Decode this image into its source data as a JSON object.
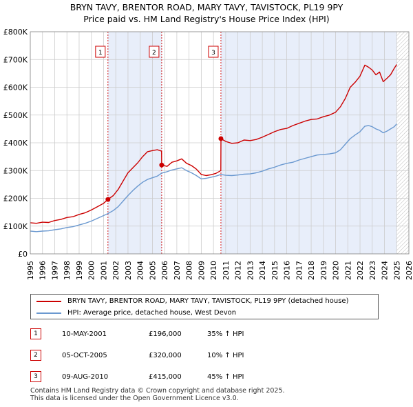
{
  "chart_data": {
    "type": "line",
    "title": "BRYN TAVY, BRENTOR ROAD, MARY TAVY, TAVISTOCK, PL19 9PY",
    "subtitle": "Price paid vs. HM Land Registry's House Price Index (HPI)",
    "x_ticks": [
      "1995",
      "1996",
      "1997",
      "1998",
      "1999",
      "2000",
      "2001",
      "2002",
      "2003",
      "2004",
      "2005",
      "2006",
      "2007",
      "2008",
      "2009",
      "2010",
      "2011",
      "2012",
      "2013",
      "2014",
      "2015",
      "2016",
      "2017",
      "2018",
      "2019",
      "2020",
      "2021",
      "2022",
      "2023",
      "2024",
      "2025",
      "2026"
    ],
    "y_ticks": [
      {
        "value": 0,
        "label": "£0"
      },
      {
        "value": 100000,
        "label": "£100K"
      },
      {
        "value": 200000,
        "label": "£200K"
      },
      {
        "value": 300000,
        "label": "£300K"
      },
      {
        "value": 400000,
        "label": "£400K"
      },
      {
        "value": 500000,
        "label": "£500K"
      },
      {
        "value": 600000,
        "label": "£600K"
      },
      {
        "value": 700000,
        "label": "£700K"
      },
      {
        "value": 800000,
        "label": "£800K"
      }
    ],
    "xlim": [
      1995,
      2026
    ],
    "ylim": [
      0,
      800000
    ],
    "grid": true,
    "series": [
      {
        "name": "BRYN TAVY, BRENTOR ROAD, MARY TAVY, TAVISTOCK, PL19 9PY (detached house)",
        "color": "#cc0000",
        "x": [
          1995,
          1995.5,
          1996,
          1996.5,
          1997,
          1997.5,
          1998,
          1998.5,
          1999,
          1999.5,
          2000,
          2000.5,
          2001.0,
          2001.36,
          2001.8,
          2002.2,
          2002.6,
          2003.0,
          2003.4,
          2003.8,
          2004.2,
          2004.6,
          2005.0,
          2005.4,
          2005.75,
          2005.76,
          2006.2,
          2006.6,
          2007.0,
          2007.4,
          2007.8,
          2008.2,
          2008.6,
          2009.0,
          2009.4,
          2009.8,
          2010.2,
          2010.6,
          2010.61,
          2011.0,
          2011.5,
          2012.0,
          2012.5,
          2013.0,
          2013.5,
          2014.0,
          2014.5,
          2015.0,
          2015.5,
          2016.0,
          2016.5,
          2017.0,
          2017.5,
          2018.0,
          2018.5,
          2019.0,
          2019.5,
          2020.0,
          2020.4,
          2020.8,
          2021.2,
          2021.6,
          2022.0,
          2022.4,
          2022.7,
          2023.0,
          2023.3,
          2023.6,
          2023.9,
          2024.2,
          2024.5,
          2024.8,
          2025.0
        ],
        "values": [
          112000,
          110000,
          114000,
          113000,
          120000,
          124000,
          131000,
          134000,
          142000,
          148000,
          158000,
          170000,
          182000,
          196000,
          210000,
          232000,
          262000,
          292000,
          310000,
          328000,
          350000,
          368000,
          372000,
          375000,
          370000,
          320000,
          315000,
          330000,
          335000,
          342000,
          326000,
          318000,
          305000,
          286000,
          282000,
          285000,
          290000,
          300000,
          415000,
          405000,
          398000,
          400000,
          410000,
          408000,
          412000,
          420000,
          430000,
          440000,
          448000,
          452000,
          462000,
          470000,
          478000,
          484000,
          486000,
          494000,
          500000,
          510000,
          530000,
          560000,
          600000,
          618000,
          640000,
          680000,
          672000,
          662000,
          645000,
          655000,
          620000,
          632000,
          645000,
          668000,
          682000
        ]
      },
      {
        "name": "HPI: Average price, detached house, West Devon",
        "color": "#6b99d0",
        "x": [
          1995,
          1995.5,
          1996,
          1996.5,
          1997,
          1997.5,
          1998,
          1998.5,
          1999,
          1999.5,
          2000,
          2000.5,
          2001.0,
          2001.36,
          2001.8,
          2002.2,
          2002.6,
          2003.0,
          2003.4,
          2003.8,
          2004.2,
          2004.6,
          2005.0,
          2005.4,
          2005.76,
          2006.2,
          2006.6,
          2007.0,
          2007.4,
          2007.8,
          2008.2,
          2008.6,
          2009.0,
          2009.4,
          2009.8,
          2010.2,
          2010.61,
          2011.0,
          2011.5,
          2012.0,
          2012.5,
          2013.0,
          2013.5,
          2014.0,
          2014.5,
          2015.0,
          2015.5,
          2016.0,
          2016.5,
          2017.0,
          2017.5,
          2018.0,
          2018.5,
          2019.0,
          2019.5,
          2020.0,
          2020.4,
          2020.8,
          2021.2,
          2021.6,
          2022.0,
          2022.4,
          2022.7,
          2023.0,
          2023.3,
          2023.6,
          2023.9,
          2024.2,
          2024.5,
          2024.8,
          2025.0
        ],
        "values": [
          82000,
          80000,
          82000,
          83000,
          87000,
          90000,
          95000,
          98000,
          104000,
          110000,
          118000,
          128000,
          138000,
          145000,
          156000,
          170000,
          190000,
          210000,
          228000,
          244000,
          258000,
          268000,
          274000,
          280000,
          291000,
          296000,
          302000,
          306000,
          310000,
          300000,
          292000,
          282000,
          270000,
          272000,
          276000,
          280000,
          286000,
          283000,
          282000,
          284000,
          287000,
          288000,
          292000,
          298000,
          306000,
          312000,
          320000,
          326000,
          330000,
          338000,
          344000,
          350000,
          356000,
          358000,
          360000,
          364000,
          375000,
          395000,
          415000,
          428000,
          440000,
          460000,
          462000,
          458000,
          450000,
          445000,
          436000,
          442000,
          450000,
          458000,
          468000
        ]
      }
    ],
    "markers": [
      {
        "label": "1",
        "x": 2001.36,
        "value": 196000
      },
      {
        "label": "2",
        "x": 2005.76,
        "value": 320000
      },
      {
        "label": "3",
        "x": 2010.61,
        "value": 415000
      }
    ]
  },
  "legend": {
    "property_label": "BRYN TAVY, BRENTOR ROAD, MARY TAVY, TAVISTOCK, PL19 9PY (detached house)",
    "hpi_label": "HPI: Average price, detached house, West Devon"
  },
  "sales": [
    {
      "num": "1",
      "date": "10-MAY-2001",
      "price": "£196,000",
      "hpi": "35% ↑ HPI"
    },
    {
      "num": "2",
      "date": "05-OCT-2005",
      "price": "£320,000",
      "hpi": "10% ↑ HPI"
    },
    {
      "num": "3",
      "date": "09-AUG-2010",
      "price": "£415,000",
      "hpi": "45% ↑ HPI"
    }
  ],
  "footer": {
    "line1": "Contains HM Land Registry data © Crown copyright and database right 2025.",
    "line2": "This data is licensed under the Open Government Licence v3.0."
  }
}
